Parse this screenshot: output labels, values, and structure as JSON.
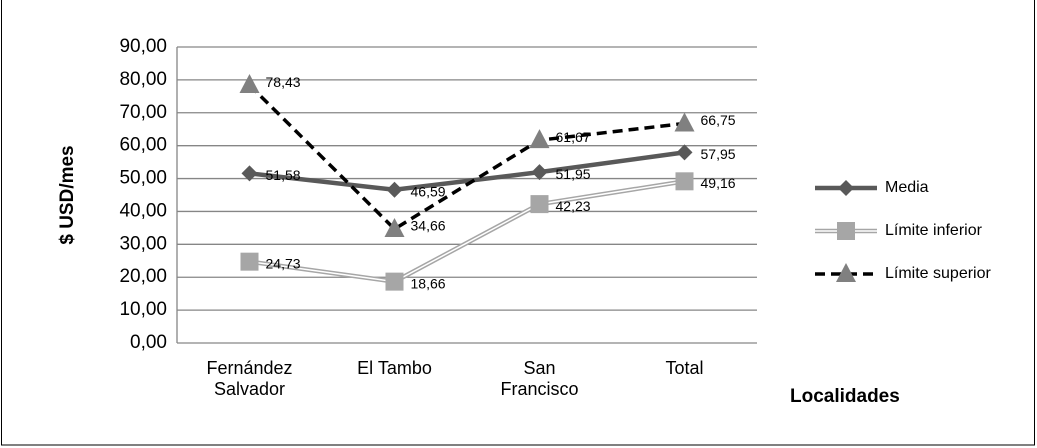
{
  "chart_data": {
    "type": "line",
    "x_label": "Localidades",
    "y_label": "$ USD/mes",
    "categories": [
      "Fernández Salvador",
      "El Tambo",
      "San Francisco",
      "Total"
    ],
    "ylim": [
      0,
      90
    ],
    "yticks": [
      {
        "value": 0,
        "label": "0,00"
      },
      {
        "value": 10,
        "label": "10,00"
      },
      {
        "value": 20,
        "label": "20,00"
      },
      {
        "value": 30,
        "label": "30,00"
      },
      {
        "value": 40,
        "label": "40,00"
      },
      {
        "value": 50,
        "label": "50,00"
      },
      {
        "value": 60,
        "label": "60,00"
      },
      {
        "value": 70,
        "label": "70,00"
      },
      {
        "value": 80,
        "label": "80,00"
      },
      {
        "value": 90,
        "label": "90,00"
      }
    ],
    "grid": true,
    "legend": "right",
    "series": [
      {
        "name": "Media",
        "color": "#595959",
        "values": [
          51.58,
          46.59,
          51.95,
          57.95
        ],
        "value_labels": [
          "51,58",
          "46,59",
          "51,95",
          "57,95"
        ]
      },
      {
        "name": "Límite inferior",
        "color": "#a6a6a6",
        "values": [
          24.73,
          18.66,
          42.23,
          49.16
        ],
        "value_labels": [
          "24,73",
          "18,66",
          "42,23",
          "49,16"
        ]
      },
      {
        "name": "Límite superior",
        "color": "#000000",
        "values": [
          78.43,
          34.66,
          61.67,
          66.75
        ],
        "value_labels": [
          "78,43",
          "34,66",
          "61,67",
          "66,75"
        ]
      }
    ]
  }
}
